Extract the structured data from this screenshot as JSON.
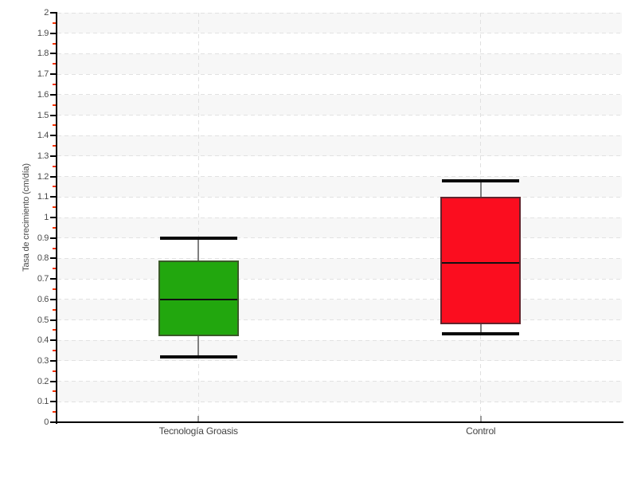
{
  "chart_data": {
    "type": "boxplot",
    "title": "",
    "xlabel": "",
    "ylabel": "Tasa de crecimiento (cm/día)",
    "categories": [
      "Tecnología Groasis",
      "Control"
    ],
    "series": [
      {
        "name": "Tecnología Groasis",
        "min": 0.32,
        "q1": 0.42,
        "median": 0.6,
        "q3": 0.79,
        "max": 0.9,
        "fill": "#22a70e",
        "border": "#3a5a28"
      },
      {
        "name": "Control",
        "min": 0.43,
        "q1": 0.48,
        "median": 0.78,
        "q3": 1.1,
        "max": 1.18,
        "fill": "#fb0d1f",
        "border": "#61242c"
      }
    ],
    "ylim": [
      0,
      2
    ],
    "y_major_step": 0.1,
    "y_minor_step": 0.05,
    "y_tick_labels": [
      "2",
      "1.9",
      "1.8",
      "1.7",
      "1.6",
      "1.5",
      "1.4",
      "1.3",
      "1.2",
      "1.1",
      "1",
      "0.9",
      "0.8",
      "0.7",
      "0.6",
      "0.5",
      "0.4",
      "0.3",
      "0.2",
      "0.1",
      "0"
    ],
    "grid": {
      "horizontal": "dashed-major",
      "vertical": "dashed-at-categories",
      "background_bands": "alternating"
    },
    "legend": "none"
  },
  "colors": {
    "background": "#ffffff",
    "band": "#f7f7f7",
    "gridline": "#e2e2e2",
    "axis": "#000000",
    "tick_label": "#4a4a4a",
    "minor_tick": "#f63000",
    "whisker_stem": "#7f7f7f",
    "whisker_cap": "#0a0a0a",
    "median_line": "#111111"
  }
}
